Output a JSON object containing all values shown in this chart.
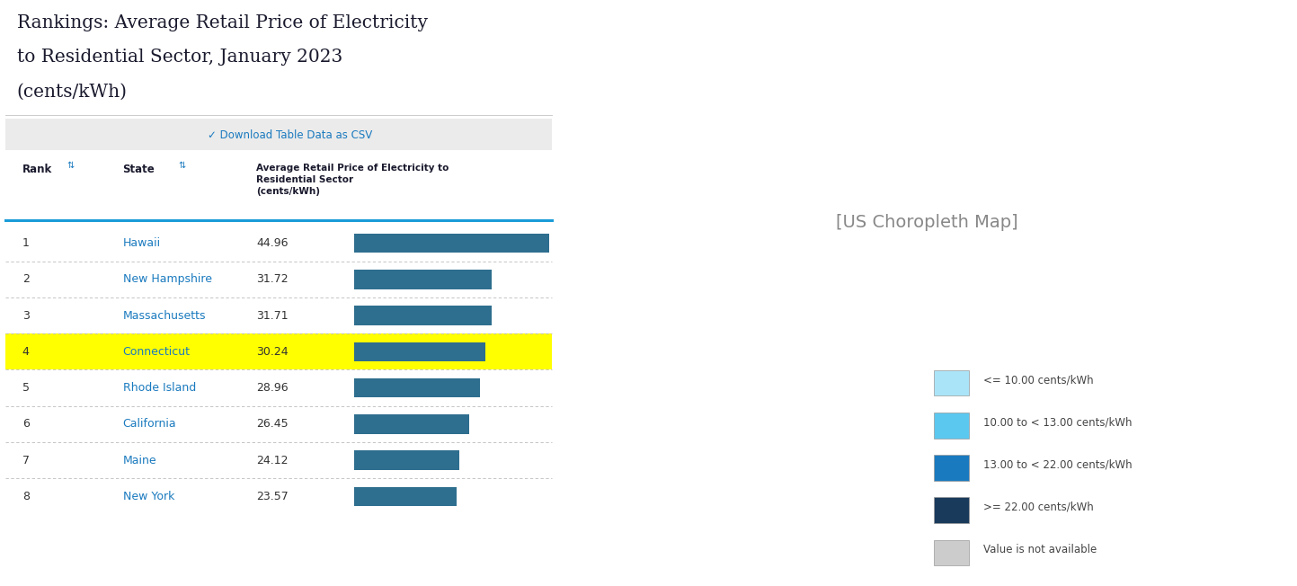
{
  "title_line1": "Rankings: Average Retail Price of Electricity",
  "title_line2": "to Residential Sector, January 2023",
  "title_line3": "(cents/kWh)",
  "download_text": "Download Table Data as CSV",
  "rows": [
    {
      "rank": 1,
      "state": "Hawaii",
      "value": 44.96,
      "highlight": false
    },
    {
      "rank": 2,
      "state": "New Hampshire",
      "value": 31.72,
      "highlight": false
    },
    {
      "rank": 3,
      "state": "Massachusetts",
      "value": 31.71,
      "highlight": false
    },
    {
      "rank": 4,
      "state": "Connecticut",
      "value": 30.24,
      "highlight": true
    },
    {
      "rank": 5,
      "state": "Rhode Island",
      "value": 28.96,
      "highlight": false
    },
    {
      "rank": 6,
      "state": "California",
      "value": 26.45,
      "highlight": false
    },
    {
      "rank": 7,
      "state": "Maine",
      "value": 24.12,
      "highlight": false
    },
    {
      "rank": 8,
      "state": "New York",
      "value": 23.57,
      "highlight": false
    }
  ],
  "max_value": 44.96,
  "bar_color": "#2e6e8e",
  "highlight_color": "#ffff00",
  "title_color": "#1a1a2e",
  "state_link_color": "#1a7abf",
  "rank_color": "#333333",
  "value_color": "#333333",
  "header_color": "#1a1a2e",
  "divider_color": "#1a9cd8",
  "row_divider_color": "#bbbbbb",
  "download_bg": "#ebebeb",
  "download_link_color": "#1a7abf",
  "legend_items": [
    {
      "color": "#aae4f8",
      "label": "<= 10.00 cents/kWh"
    },
    {
      "color": "#5bc8f0",
      "label": "10.00 to < 13.00 cents/kWh"
    },
    {
      "color": "#1a7abf",
      "label": "13.00 to < 22.00 cents/kWh"
    },
    {
      "color": "#1a3a5c",
      "label": ">= 22.00 cents/kWh"
    },
    {
      "color": "#cccccc",
      "label": "Value is not available"
    }
  ],
  "bg_color": "#ffffff",
  "bottom_bar_color": "#1a9cd8",
  "state_colors": {
    "AL": "#1a7abf",
    "AK": "#1a7abf",
    "AZ": "#5bc8f0",
    "AR": "#1a7abf",
    "CA": "#1a3a5c",
    "CO": "#5bc8f0",
    "CT": "#1a3a5c",
    "DE": "#1a7abf",
    "FL": "#1a7abf",
    "GA": "#1a7abf",
    "HI": "#1a3a5c",
    "ID": "#5bc8f0",
    "IL": "#1a7abf",
    "IN": "#1a7abf",
    "IA": "#5bc8f0",
    "KS": "#5bc8f0",
    "KY": "#1a7abf",
    "LA": "#1a7abf",
    "ME": "#1a3a5c",
    "MD": "#1a7abf",
    "MA": "#1a3a5c",
    "MI": "#1a7abf",
    "MN": "#5bc8f0",
    "MS": "#1a7abf",
    "MO": "#1a7abf",
    "MT": "#5bc8f0",
    "NE": "#5bc8f0",
    "NV": "#5bc8f0",
    "NH": "#1a3a5c",
    "NJ": "#1a7abf",
    "NM": "#5bc8f0",
    "NY": "#1a3a5c",
    "NC": "#1a7abf",
    "ND": "#5bc8f0",
    "OH": "#1a7abf",
    "OK": "#1a7abf",
    "OR": "#5bc8f0",
    "PA": "#1a7abf",
    "RI": "#1a3a5c",
    "SC": "#1a7abf",
    "SD": "#5bc8f0",
    "TN": "#1a7abf",
    "TX": "#1a7abf",
    "UT": "#5bc8f0",
    "VT": "#1a7abf",
    "VA": "#1a7abf",
    "WA": "#aae4f8",
    "WV": "#1a7abf",
    "WI": "#5bc8f0",
    "WY": "#5bc8f0"
  }
}
